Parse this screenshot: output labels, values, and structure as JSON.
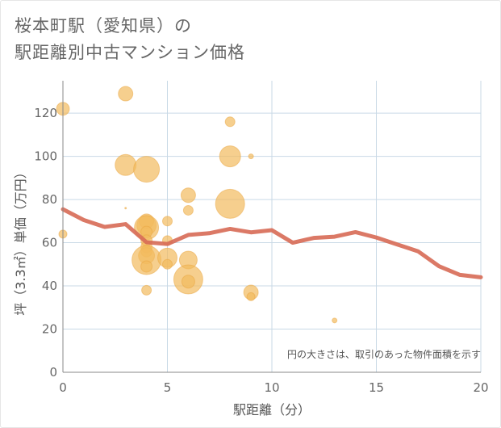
{
  "title_line1": "桜本町駅（愛知県）の",
  "title_line2": "駅距離別中古マンション価格",
  "colors": {
    "bubble": "#f2bb5e",
    "bubble_stroke": "#e9a640",
    "line": "#d76a55",
    "grid": "#c9d9e6",
    "axis": "#888888"
  },
  "chart_data": {
    "type": "scatter",
    "xlabel": "駅距離（分）",
    "ylabel": "坪（3.3㎡）単価（万円）",
    "xlim": [
      0,
      20
    ],
    "ylim": [
      0,
      135
    ],
    "x_ticks": [
      0,
      5,
      10,
      15,
      20
    ],
    "y_ticks": [
      0,
      20,
      40,
      60,
      80,
      100,
      120
    ],
    "note": "円の大きさは、取引のあった物件面積を示す",
    "bubbles": [
      {
        "x": 0,
        "y": 122,
        "r": 8
      },
      {
        "x": 0,
        "y": 64,
        "r": 5
      },
      {
        "x": 3,
        "y": 129,
        "r": 9
      },
      {
        "x": 3,
        "y": 96,
        "r": 13
      },
      {
        "x": 3,
        "y": 76,
        "r": 1
      },
      {
        "x": 4,
        "y": 94,
        "r": 16
      },
      {
        "x": 4,
        "y": 70,
        "r": 9
      },
      {
        "x": 4,
        "y": 68,
        "r": 12
      },
      {
        "x": 4,
        "y": 67,
        "r": 15
      },
      {
        "x": 4,
        "y": 65,
        "r": 7
      },
      {
        "x": 4,
        "y": 61,
        "r": 7
      },
      {
        "x": 4,
        "y": 58,
        "r": 7
      },
      {
        "x": 4,
        "y": 56,
        "r": 7
      },
      {
        "x": 4,
        "y": 54,
        "r": 10
      },
      {
        "x": 4,
        "y": 52,
        "r": 18
      },
      {
        "x": 4,
        "y": 49,
        "r": 7
      },
      {
        "x": 4,
        "y": 38,
        "r": 6
      },
      {
        "x": 5,
        "y": 70,
        "r": 6
      },
      {
        "x": 5,
        "y": 61,
        "r": 6
      },
      {
        "x": 5,
        "y": 53,
        "r": 12
      },
      {
        "x": 5,
        "y": 50,
        "r": 6
      },
      {
        "x": 6,
        "y": 82,
        "r": 9
      },
      {
        "x": 6,
        "y": 75,
        "r": 6
      },
      {
        "x": 6,
        "y": 52,
        "r": 11
      },
      {
        "x": 6,
        "y": 43,
        "r": 18
      },
      {
        "x": 6,
        "y": 42,
        "r": 8
      },
      {
        "x": 8,
        "y": 116,
        "r": 6
      },
      {
        "x": 8,
        "y": 100,
        "r": 13
      },
      {
        "x": 8,
        "y": 78,
        "r": 18
      },
      {
        "x": 9,
        "y": 100,
        "r": 3
      },
      {
        "x": 9,
        "y": 37,
        "r": 9
      },
      {
        "x": 9,
        "y": 35,
        "r": 5
      },
      {
        "x": 13,
        "y": 24,
        "r": 3
      }
    ],
    "series": [
      {
        "x": [
          0,
          1,
          2,
          3,
          4,
          5,
          6,
          7,
          8,
          9,
          10,
          11,
          12,
          13,
          14,
          15,
          16,
          17,
          18,
          19,
          20
        ],
        "values": [
          75.5,
          70.5,
          67.3,
          68.6,
          60.2,
          59.4,
          63.6,
          64.4,
          66.4,
          64.8,
          65.8,
          60,
          62.2,
          62.8,
          64.9,
          62.4,
          59.2,
          56,
          49.1,
          45.1,
          44
        ]
      }
    ]
  }
}
